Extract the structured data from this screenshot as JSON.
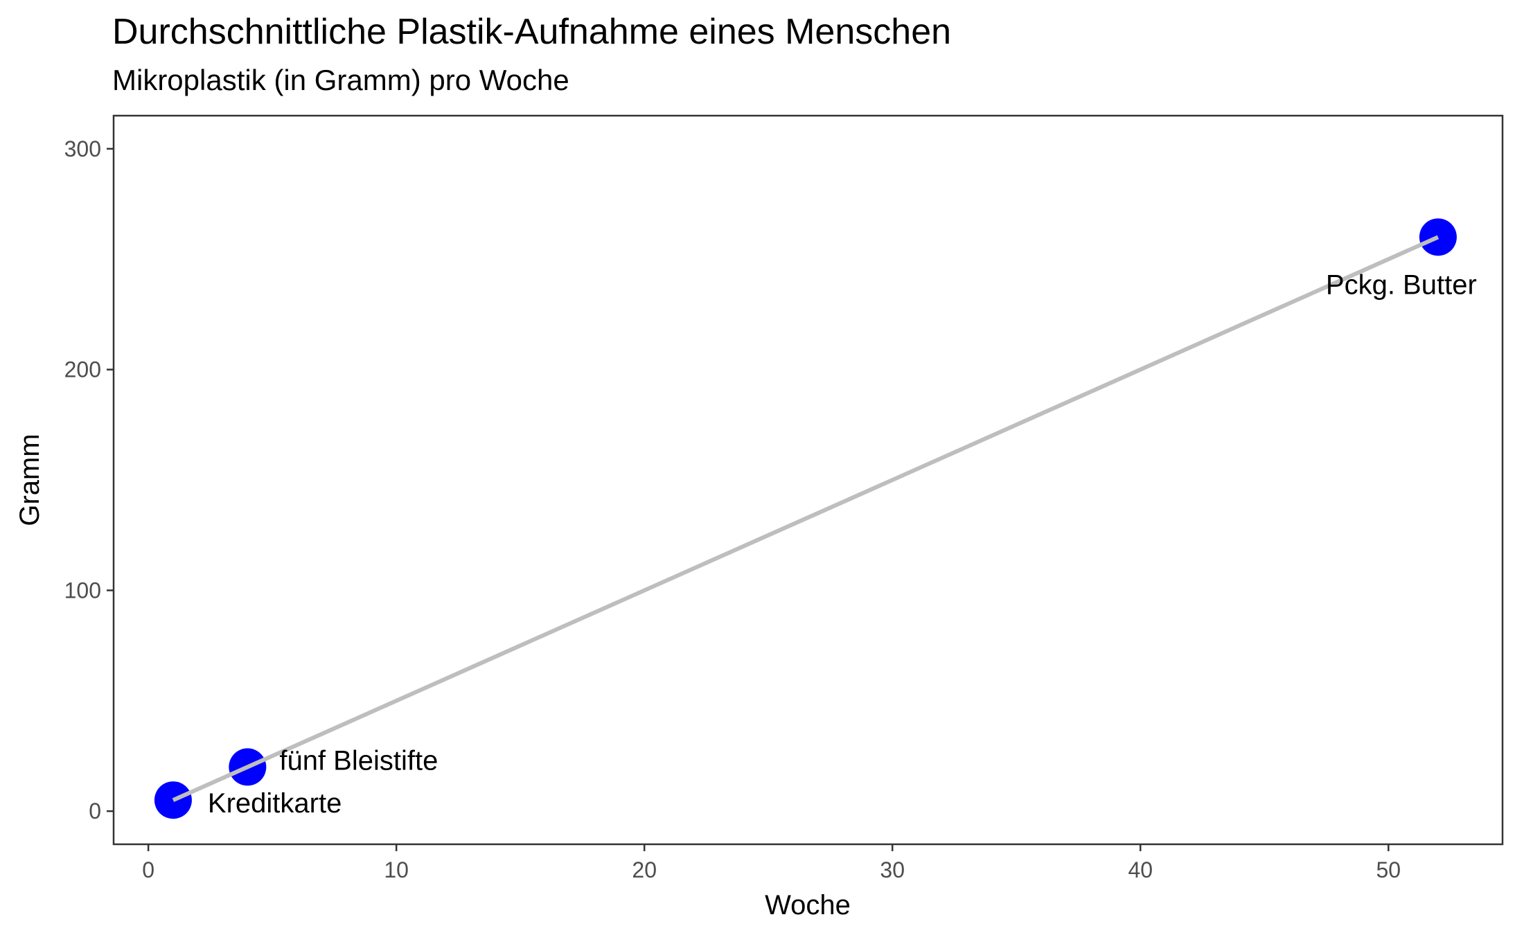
{
  "chart_data": {
    "type": "scatter",
    "title": "Durchschnittliche Plastik-Aufnahme eines Menschen",
    "subtitle": "Mikroplastik (in Gramm) pro Woche",
    "xlabel": "Woche",
    "ylabel": "Gramm",
    "xlim": [
      -1.4,
      54.6
    ],
    "ylim": [
      -15,
      315
    ],
    "x_ticks": [
      0,
      10,
      20,
      30,
      40,
      50
    ],
    "y_ticks": [
      0,
      100,
      200,
      300
    ],
    "grid": false,
    "points": [
      {
        "x": 1,
        "y": 5,
        "label": "Kreditkarte"
      },
      {
        "x": 4,
        "y": 20,
        "label": "fünf Bleistifte"
      },
      {
        "x": 52,
        "y": 260,
        "label": "Pckg. Butter"
      }
    ],
    "trend_line": {
      "x": [
        1,
        52
      ],
      "y": [
        5,
        260
      ]
    },
    "colors": {
      "points": "#0000ff",
      "trend_line": "#bebebe",
      "axis": "#333333"
    }
  }
}
